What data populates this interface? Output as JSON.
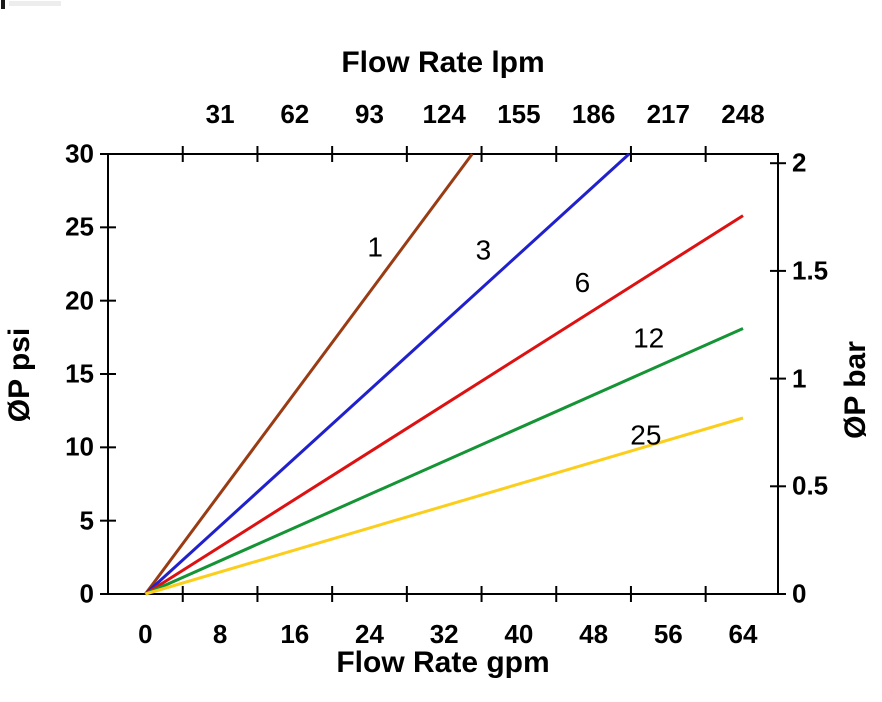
{
  "chart_data": {
    "type": "line",
    "title_top_axis": "Flow Rate lpm",
    "xlabel_bottom": "Flow Rate gpm",
    "ylabel_left": "ØP psi",
    "ylabel_right": "ØP bar",
    "x_bottom_tick_labels": [
      0,
      8,
      16,
      24,
      32,
      40,
      48,
      56,
      64
    ],
    "x_top_tick_labels": [
      31,
      62,
      93,
      124,
      155,
      186,
      217,
      248
    ],
    "y_left_tick_labels": [
      0,
      5,
      10,
      15,
      20,
      25,
      30
    ],
    "y_right_tick_labels": [
      "0",
      "0.5",
      "1",
      "1.5",
      "2"
    ],
    "y_right_tick_values": [
      0,
      0.5,
      1,
      1.5,
      2
    ],
    "x_range_gpm": [
      0,
      64
    ],
    "y_range_psi": [
      0,
      30
    ],
    "grid": "off",
    "legend": "inline-labels-on-lines",
    "frame_color": "#000000",
    "background_color": "#ffffff",
    "series": [
      {
        "name": "1",
        "color": "#993C14",
        "points_gpm_psi": [
          [
            0,
            0
          ],
          [
            35.0,
            30
          ]
        ],
        "label_at_gpm_psi": [
          24.6,
          23.5
        ]
      },
      {
        "name": "3",
        "color": "#2020CC",
        "points_gpm_psi": [
          [
            0,
            0
          ],
          [
            51.8,
            30
          ]
        ],
        "label_at_gpm_psi": [
          36.2,
          23.3
        ]
      },
      {
        "name": "6",
        "color": "#DD1111",
        "points_gpm_psi": [
          [
            0,
            0
          ],
          [
            64,
            25.8
          ]
        ],
        "label_at_gpm_psi": [
          46.8,
          21.1
        ]
      },
      {
        "name": "12",
        "color": "#149434",
        "points_gpm_psi": [
          [
            0,
            0
          ],
          [
            64,
            18.1
          ]
        ],
        "label_at_gpm_psi": [
          53.9,
          17.3
        ]
      },
      {
        "name": "25",
        "color": "#FCCE1C",
        "points_gpm_psi": [
          [
            0,
            0
          ],
          [
            64,
            12.0
          ]
        ],
        "label_at_gpm_psi": [
          53.6,
          10.7
        ]
      }
    ]
  }
}
